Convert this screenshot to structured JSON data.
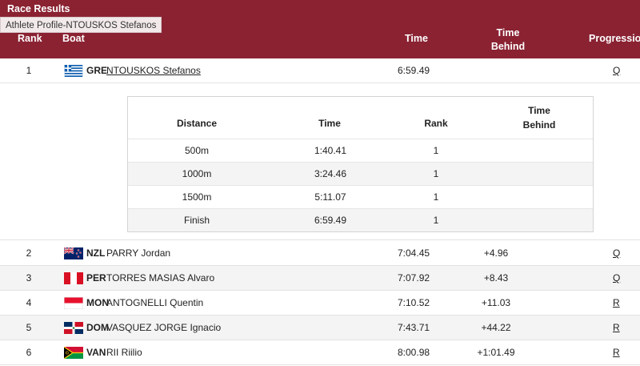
{
  "header": {
    "title": "Race Results",
    "tooltip": "Athlete Profile-NTOUSKOS Stefanos",
    "columns": {
      "rank": "Rank",
      "boat": "Boat",
      "time": "Time",
      "time_behind_1": "Time",
      "time_behind_2": "Behind",
      "progression": "Progression"
    }
  },
  "results": [
    {
      "rank": "1",
      "country": "GRE",
      "flag_icon": "greece-flag-icon",
      "name": "NTOUSKOS Stefanos",
      "time": "6:59.49",
      "behind": "",
      "progression": "Q"
    },
    {
      "rank": "2",
      "country": "NZL",
      "flag_icon": "new-zealand-flag-icon",
      "name": "PARRY Jordan",
      "time": "7:04.45",
      "behind": "+4.96",
      "progression": "Q"
    },
    {
      "rank": "3",
      "country": "PER",
      "flag_icon": "peru-flag-icon",
      "name": "TORRES MASIAS Alvaro",
      "time": "7:07.92",
      "behind": "+8.43",
      "progression": "Q"
    },
    {
      "rank": "4",
      "country": "MON",
      "flag_icon": "monaco-flag-icon",
      "name": "ANTOGNELLI Quentin",
      "time": "7:10.52",
      "behind": "+11.03",
      "progression": "R"
    },
    {
      "rank": "5",
      "country": "DOM",
      "flag_icon": "dominican-republic-flag-icon",
      "name": "VASQUEZ JORGE Ignacio",
      "time": "7:43.71",
      "behind": "+44.22",
      "progression": "R"
    },
    {
      "rank": "6",
      "country": "VAN",
      "flag_icon": "vanuatu-flag-icon",
      "name": "RII Riilio",
      "time": "8:00.98",
      "behind": "+1:01.49",
      "progression": "R"
    }
  ],
  "splits": {
    "headers": {
      "distance": "Distance",
      "time": "Time",
      "rank": "Rank",
      "behind_1": "Time",
      "behind_2": "Behind"
    },
    "rows": [
      {
        "distance": "500m",
        "time": "1:40.41",
        "rank": "1"
      },
      {
        "distance": "1000m",
        "time": "3:24.46",
        "rank": "1"
      },
      {
        "distance": "1500m",
        "time": "5:11.07",
        "rank": "1"
      },
      {
        "distance": "Finish",
        "time": "6:59.49",
        "rank": "1"
      }
    ]
  },
  "colors": {
    "header_bg": "#8a2232",
    "row_shade": "#f4f4f4"
  }
}
